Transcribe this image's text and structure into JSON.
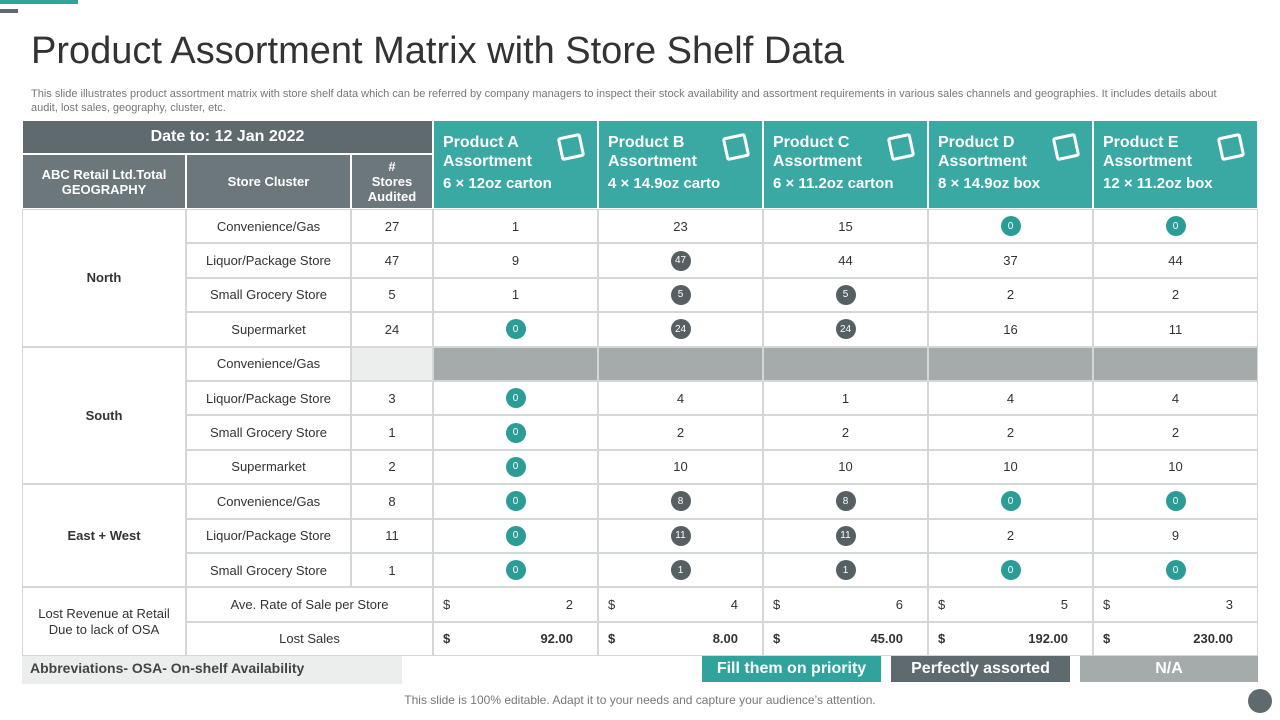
{
  "header": {
    "title": "Product Assortment Matrix with Store Shelf Data",
    "description": "This slide illustrates product assortment matrix with store shelf data which can be referred by company managers to inspect their stock availability and assortment requirements in various sales channels and geographies. It includes details about audit, lost sales, geography, cluster, etc."
  },
  "table": {
    "date_label": "Date to: 12 Jan 2022",
    "headers": [
      "ABC Retail Ltd.Total GEOGRAPHY",
      "Store Cluster",
      "# Stores Audited"
    ],
    "products": [
      {
        "name": "Product A Assortment",
        "pack": "6 × 12oz carton"
      },
      {
        "name": "Product B Assortment",
        "pack": "4 × 14.9oz carto"
      },
      {
        "name": "Product C Assortment",
        "pack": "6 × 11.2oz carton"
      },
      {
        "name": "Product D Assortment",
        "pack": "8 × 14.9oz box"
      },
      {
        "name": "Product E Assortment",
        "pack": "12 × 11.2oz box"
      }
    ],
    "groups": [
      {
        "geography": "North",
        "rows": [
          {
            "cluster": "Convenience/Gas",
            "audited": 27,
            "values": [
              {
                "text": 1
              },
              {
                "text": 23
              },
              {
                "text": 15
              },
              {
                "text": 0,
                "color": "#2c9c96"
              },
              {
                "text": 0,
                "color": "#2c9c96"
              }
            ]
          },
          {
            "cluster": "Liquor/Package Store",
            "audited": 47,
            "values": [
              {
                "text": 9
              },
              {
                "text": 47,
                "color": "#566062"
              },
              {
                "text": 44
              },
              {
                "text": 37
              },
              {
                "text": 44
              }
            ]
          },
          {
            "cluster": "Small Grocery Store",
            "audited": 5,
            "values": [
              {
                "text": 1
              },
              {
                "text": 5,
                "color": "#566062"
              },
              {
                "text": 5,
                "color": "#566062"
              },
              {
                "text": 2
              },
              {
                "text": 2
              }
            ]
          },
          {
            "cluster": "Supermarket",
            "audited": 24,
            "values": [
              {
                "text": 0,
                "color": "#2c9c96"
              },
              {
                "text": 24,
                "color": "#566062"
              },
              {
                "text": 24,
                "color": "#566062"
              },
              {
                "text": 16
              },
              {
                "text": 11
              }
            ]
          }
        ]
      },
      {
        "geography": "South",
        "rows": [
          {
            "cluster": "Convenience/Gas",
            "fill": "#a5aaaa",
            "values": [
              null,
              null,
              null,
              null,
              null
            ]
          },
          {
            "cluster": "Liquor/Package Store",
            "audited": 3,
            "values": [
              {
                "text": 0,
                "color": "#2c9c96"
              },
              {
                "text": 4
              },
              {
                "text": 1
              },
              {
                "text": 4
              },
              {
                "text": 4
              }
            ]
          },
          {
            "cluster": "Small Grocery Store",
            "audited": 1,
            "values": [
              {
                "text": 0,
                "color": "#2c9c96"
              },
              {
                "text": 2
              },
              {
                "text": 2
              },
              {
                "text": 2
              },
              {
                "text": 2
              }
            ]
          },
          {
            "cluster": "Supermarket",
            "audited": 2,
            "values": [
              {
                "text": 0,
                "color": "#2c9c96"
              },
              {
                "text": 10
              },
              {
                "text": 10
              },
              {
                "text": 10
              },
              {
                "text": 10
              }
            ]
          }
        ]
      },
      {
        "geography": "East  + West",
        "rows": [
          {
            "cluster": "Convenience/Gas",
            "audited": 8,
            "values": [
              {
                "text": 0,
                "color": "#2c9c96"
              },
              {
                "text": 8,
                "color": "#566062"
              },
              {
                "text": 8,
                "color": "#566062"
              },
              {
                "text": 0,
                "color": "#2c9c96"
              },
              {
                "text": 0,
                "color": "#2c9c96"
              }
            ]
          },
          {
            "cluster": "Liquor/Package Store",
            "audited": 11,
            "values": [
              {
                "text": 0,
                "color": "#2c9c96"
              },
              {
                "text": 11,
                "color": "#566062"
              },
              {
                "text": 11,
                "color": "#566062"
              },
              {
                "text": 2
              },
              {
                "text": 9
              }
            ]
          },
          {
            "cluster": "Small Grocery Store",
            "audited": 1,
            "values": [
              {
                "text": 0,
                "color": "#2c9c96"
              },
              {
                "text": 1,
                "color": "#566062"
              },
              {
                "text": 1,
                "color": "#566062"
              },
              {
                "text": 0,
                "color": "#2c9c96"
              },
              {
                "text": 0,
                "color": "#2c9c96"
              }
            ]
          }
        ]
      }
    ],
    "revenue": {
      "label": "Lost Revenue  at Retail Due to lack of OSA",
      "rows": [
        {
          "metric": "Ave. Rate of Sale per Store",
          "bold": false,
          "values": [
            {
              "currency": "$",
              "amount": 2
            },
            {
              "currency": "$",
              "amount": 4
            },
            {
              "currency": "$",
              "amount": 6
            },
            {
              "currency": "$",
              "amount": 5
            },
            {
              "currency": "$",
              "amount": 3
            }
          ]
        },
        {
          "metric": "Lost Sales",
          "bold": true,
          "values": [
            {
              "currency": "$",
              "amount": "92.00"
            },
            {
              "currency": "$",
              "amount": "8.00"
            },
            {
              "currency": "$",
              "amount": "45.00"
            },
            {
              "currency": "$",
              "amount": "192.00"
            },
            {
              "currency": "$",
              "amount": "230.00"
            }
          ]
        }
      ]
    }
  },
  "abbreviation": "Abbreviations- OSA- On-shelf Availability",
  "legend": [
    {
      "label": "Fill them on priority",
      "color": "#2fa39c"
    },
    {
      "label": "Perfectly assorted",
      "color": "#5f6a6e"
    },
    {
      "label": "N/A",
      "color": "#a5aaaa"
    }
  ],
  "footer": "This slide is 100% editable. Adapt it to your needs and capture your audience’s attention."
}
